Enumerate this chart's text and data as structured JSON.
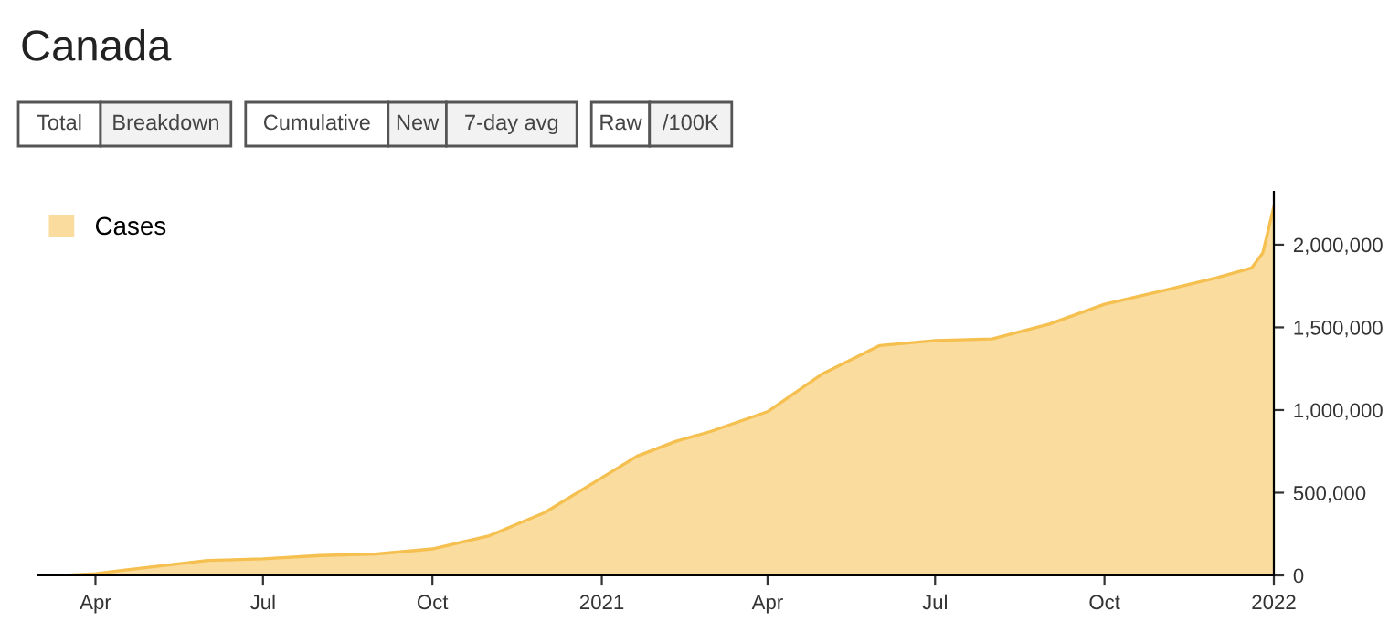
{
  "chart_data": {
    "type": "area",
    "title": "Canada",
    "annotations": [
      "Total",
      "Breakdown",
      "Cumulative",
      "New",
      "7-day avg",
      "Raw",
      "/100K"
    ],
    "x": [
      "2020-03-01",
      "2020-03-15",
      "2020-04-01",
      "2020-04-15",
      "2020-05-01",
      "2020-06-01",
      "2020-07-01",
      "2020-08-01",
      "2020-09-01",
      "2020-10-01",
      "2020-11-01",
      "2020-12-01",
      "2021-01-01",
      "2021-01-20",
      "2021-02-10",
      "2021-03-01",
      "2021-04-01",
      "2021-05-01",
      "2021-06-01",
      "2021-07-01",
      "2021-08-01",
      "2021-09-01",
      "2021-10-01",
      "2021-11-01",
      "2021-12-01",
      "2021-12-20",
      "2021-12-26",
      "2022-01-01"
    ],
    "series": [
      {
        "name": "Cases",
        "color": "#f5c04f",
        "values": [
          0,
          0,
          10000,
          30000,
          50000,
          90000,
          100000,
          120000,
          130000,
          160000,
          240000,
          380000,
          590000,
          720000,
          810000,
          870000,
          990000,
          1220000,
          1390000,
          1420000,
          1430000,
          1520000,
          1640000,
          1720000,
          1800000,
          1860000,
          1950000,
          2230000
        ]
      }
    ],
    "xlim": [
      "2020-03-01",
      "2022-01-01"
    ],
    "xticks": [
      {
        "value": "2020-04-01",
        "label": "Apr"
      },
      {
        "value": "2020-07-01",
        "label": "Jul"
      },
      {
        "value": "2020-10-01",
        "label": "Oct"
      },
      {
        "value": "2021-01-01",
        "label": "2021"
      },
      {
        "value": "2021-04-01",
        "label": "Apr"
      },
      {
        "value": "2021-07-01",
        "label": "Jul"
      },
      {
        "value": "2021-10-01",
        "label": "Oct"
      },
      {
        "value": "2022-01-01",
        "label": "2022"
      }
    ],
    "ylim": [
      0,
      2320000
    ],
    "yticks": [
      0,
      {
        "value": 500000,
        "label": "500,000"
      },
      {
        "value": 1000000,
        "label": "1,000,000"
      },
      {
        "value": 1500000,
        "label": "1,500,000"
      },
      {
        "value": 2000000,
        "label": "2,000,000"
      }
    ],
    "grid": false,
    "legend": "top left"
  }
}
